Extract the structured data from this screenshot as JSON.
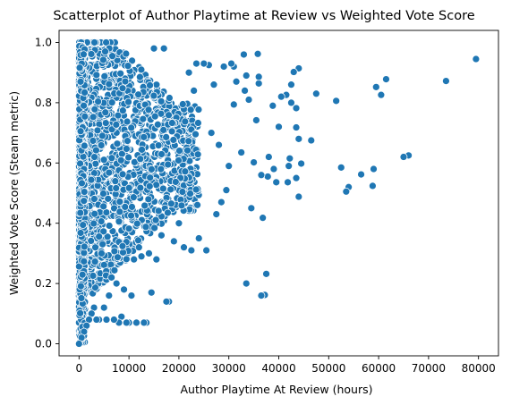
{
  "chart_data": {
    "type": "scatter",
    "title": "Scatterplot of Author Playtime at Review vs Weighted Vote Score",
    "xlabel": "Author Playtime At Review (hours)",
    "ylabel": "Weighted Vote Score (Steam metric)",
    "xlim": [
      -4000,
      84000
    ],
    "ylim": [
      -0.04,
      1.04
    ],
    "xticks": [
      0,
      10000,
      20000,
      30000,
      40000,
      50000,
      60000,
      70000,
      80000
    ],
    "xtick_labels": [
      "0",
      "10000",
      "20000",
      "30000",
      "40000",
      "50000",
      "60000",
      "70000",
      "80000"
    ],
    "yticks": [
      0.0,
      0.2,
      0.4,
      0.6,
      0.8,
      1.0
    ],
    "ytick_labels": [
      "0.0",
      "0.2",
      "0.4",
      "0.6",
      "0.8",
      "1.0"
    ],
    "grid": false,
    "legend": null,
    "point_color": "#1f77b4",
    "series": [
      {
        "dense_cloud": "points concentrated near x=0 over y 0.0–1.0, spreading rightward to about 25000 hours",
        "points": [
          [
            79500,
            0.945
          ],
          [
            73500,
            0.872
          ],
          [
            66000,
            0.625
          ],
          [
            65000,
            0.62
          ],
          [
            61500,
            0.878
          ],
          [
            60500,
            0.826
          ],
          [
            59500,
            0.852
          ],
          [
            59000,
            0.58
          ],
          [
            58800,
            0.524
          ],
          [
            56500,
            0.562
          ],
          [
            54000,
            0.52
          ],
          [
            53500,
            0.505
          ],
          [
            52500,
            0.585
          ],
          [
            51500,
            0.806
          ],
          [
            47500,
            0.83
          ],
          [
            46500,
            0.675
          ],
          [
            44500,
            0.598
          ],
          [
            44000,
            0.68
          ],
          [
            44000,
            0.488
          ],
          [
            44000,
            0.914
          ],
          [
            43500,
            0.782
          ],
          [
            43500,
            0.718
          ],
          [
            43500,
            0.55
          ],
          [
            43000,
            0.902
          ],
          [
            42500,
            0.86
          ],
          [
            42500,
            0.8
          ],
          [
            42200,
            0.615
          ],
          [
            42000,
            0.59
          ],
          [
            41800,
            0.536
          ],
          [
            41500,
            0.826
          ],
          [
            40500,
            0.82
          ],
          [
            40000,
            0.72
          ],
          [
            39500,
            0.536
          ],
          [
            39000,
            0.58
          ],
          [
            38800,
            0.79
          ],
          [
            38000,
            0.62
          ],
          [
            37800,
            0.555
          ],
          [
            37500,
            0.232
          ],
          [
            37200,
            0.162
          ],
          [
            36800,
            0.418
          ],
          [
            36500,
            0.16
          ],
          [
            36500,
            0.56
          ],
          [
            36000,
            0.864
          ],
          [
            36000,
            0.886
          ],
          [
            35800,
            0.962
          ],
          [
            35500,
            0.742
          ],
          [
            35000,
            0.602
          ],
          [
            34500,
            0.45
          ],
          [
            34000,
            0.81
          ],
          [
            33500,
            0.2
          ],
          [
            33500,
            0.89
          ],
          [
            33200,
            0.84
          ],
          [
            33000,
            0.96
          ],
          [
            32500,
            0.635
          ],
          [
            31500,
            0.87
          ],
          [
            31000,
            0.794
          ],
          [
            31000,
            0.92
          ],
          [
            30500,
            0.93
          ],
          [
            30000,
            0.59
          ],
          [
            29500,
            0.51
          ],
          [
            29000,
            0.92
          ],
          [
            28500,
            0.47
          ],
          [
            28000,
            0.66
          ],
          [
            27500,
            0.43
          ],
          [
            27000,
            0.86
          ],
          [
            26500,
            0.7
          ],
          [
            26000,
            0.925
          ],
          [
            25500,
            0.31
          ],
          [
            25000,
            0.93
          ],
          [
            24000,
            0.35
          ],
          [
            23500,
            0.93
          ],
          [
            23000,
            0.84
          ],
          [
            22500,
            0.31
          ],
          [
            22000,
            0.9
          ],
          [
            21000,
            0.32
          ],
          [
            20000,
            0.4
          ],
          [
            19000,
            0.34
          ],
          [
            18000,
            0.14
          ],
          [
            17500,
            0.14
          ],
          [
            17000,
            0.98
          ],
          [
            16500,
            0.36
          ],
          [
            15500,
            0.28
          ],
          [
            15000,
            0.98
          ],
          [
            14500,
            0.17
          ],
          [
            14000,
            0.3
          ],
          [
            13500,
            0.07
          ],
          [
            13000,
            0.07
          ],
          [
            12500,
            0.29
          ],
          [
            12000,
            0.32
          ],
          [
            11500,
            0.07
          ],
          [
            11000,
            0.28
          ],
          [
            10500,
            0.16
          ],
          [
            10000,
            0.07
          ],
          [
            9500,
            0.07
          ],
          [
            9000,
            0.18
          ],
          [
            8500,
            0.09
          ],
          [
            8000,
            0.07
          ],
          [
            7500,
            0.2
          ],
          [
            7000,
            0.08
          ],
          [
            6500,
            0.22
          ],
          [
            6000,
            0.16
          ],
          [
            5500,
            0.08
          ],
          [
            5000,
            0.12
          ],
          [
            4500,
            0.3
          ],
          [
            4000,
            0.08
          ],
          [
            3500,
            0.08
          ],
          [
            3000,
            0.12
          ],
          [
            2500,
            0.1
          ],
          [
            2000,
            0.08
          ],
          [
            1500,
            0.06
          ],
          [
            1000,
            0.04
          ],
          [
            500,
            0.02
          ],
          [
            0,
            0.0
          ]
        ]
      }
    ]
  }
}
